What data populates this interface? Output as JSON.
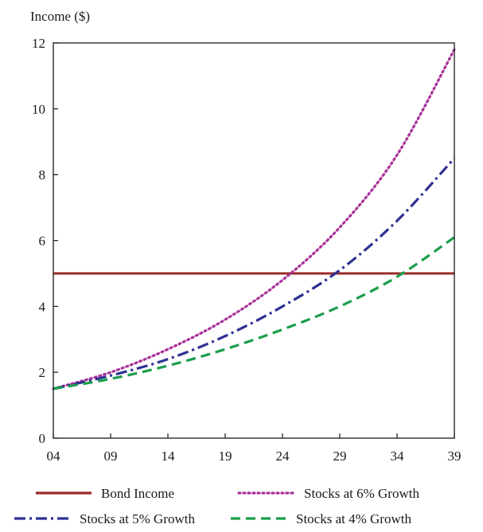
{
  "chart_data": {
    "type": "line",
    "ylabel": "Income ($)",
    "x_ticks": [
      "04",
      "09",
      "14",
      "19",
      "24",
      "29",
      "34",
      "39"
    ],
    "y_ticks": [
      "0",
      "2",
      "4",
      "6",
      "8",
      "10",
      "12"
    ],
    "xlim": [
      2004,
      2039
    ],
    "ylim": [
      0,
      12
    ],
    "grid": false,
    "legend_placement": "bottom",
    "series": [
      {
        "name": "Bond Income",
        "style": "solid",
        "color": "#9b2a2a",
        "x": [
          2004,
          2039
        ],
        "values": [
          5.0,
          5.0
        ]
      },
      {
        "name": "Stocks at 6% Growth",
        "style": "dotted",
        "color": "#a83298",
        "x": [
          2004,
          2009,
          2014,
          2019,
          2024,
          2029,
          2034,
          2039
        ],
        "values": [
          1.5,
          2.0,
          2.7,
          3.6,
          4.8,
          6.4,
          8.6,
          11.8
        ]
      },
      {
        "name": "Stocks at 5% Growth",
        "style": "dash-dot",
        "color": "#2e3192",
        "x": [
          2004,
          2009,
          2014,
          2019,
          2024,
          2029,
          2034,
          2039
        ],
        "values": [
          1.5,
          1.9,
          2.4,
          3.1,
          4.0,
          5.1,
          6.6,
          8.5
        ]
      },
      {
        "name": "Stocks at 4% Growth",
        "style": "dashed",
        "color": "#1a9e4a",
        "x": [
          2004,
          2009,
          2014,
          2019,
          2024,
          2029,
          2034,
          2039
        ],
        "values": [
          1.5,
          1.8,
          2.2,
          2.7,
          3.3,
          4.0,
          4.9,
          6.1
        ]
      }
    ]
  }
}
